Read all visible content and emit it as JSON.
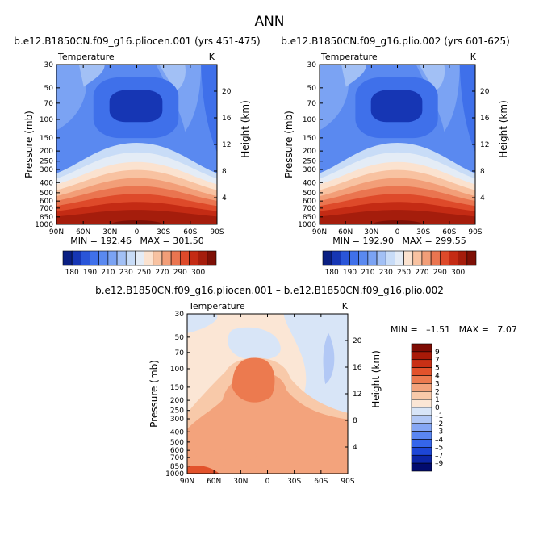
{
  "figure_title": "ANN",
  "chart_data": [
    {
      "type": "heatmap",
      "title": "b.e12.B1850CN.f09_g16.pliocen.001 (yrs 451-475)",
      "field": "Temperature",
      "units": "K",
      "xlabel": "",
      "ylabel": "Pressure (mb)",
      "y2label": "Height (km)",
      "x_ticks": [
        "90N",
        "60N",
        "30N",
        "0",
        "30S",
        "60S",
        "90S"
      ],
      "y_ticks": [
        "30",
        "50",
        "70",
        "100",
        "150",
        "200",
        "250",
        "300",
        "400",
        "500",
        "600",
        "700",
        "850",
        "1000"
      ],
      "y2_ticks": [
        "4",
        "8",
        "12",
        "16",
        "20"
      ],
      "stats": "MIN = 192.46   MAX = 301.50",
      "colorbar_labels": [
        "180",
        "190",
        "210",
        "230",
        "250",
        "270",
        "290",
        "300"
      ],
      "levels": [
        180,
        190,
        200,
        210,
        220,
        230,
        240,
        250,
        260,
        270,
        280,
        290,
        300
      ]
    },
    {
      "type": "heatmap",
      "title": "b.e12.B1850CN.f09_g16.plio.002 (yrs 601-625)",
      "field": "Temperature",
      "units": "K",
      "xlabel": "",
      "ylabel": "Pressure (mb)",
      "y2label": "Height (km)",
      "x_ticks": [
        "90N",
        "60N",
        "30N",
        "0",
        "30S",
        "60S",
        "90S"
      ],
      "y_ticks": [
        "30",
        "50",
        "70",
        "100",
        "150",
        "200",
        "250",
        "300",
        "400",
        "500",
        "600",
        "700",
        "850",
        "1000"
      ],
      "y2_ticks": [
        "4",
        "8",
        "12",
        "16",
        "20"
      ],
      "stats": "MIN = 192.90   MAX = 299.55",
      "colorbar_labels": [
        "180",
        "190",
        "210",
        "230",
        "250",
        "270",
        "290",
        "300"
      ],
      "levels": [
        180,
        190,
        200,
        210,
        220,
        230,
        240,
        250,
        260,
        270,
        280,
        290,
        300
      ]
    },
    {
      "type": "heatmap",
      "title": "b.e12.B1850CN.f09_g16.pliocen.001 – b.e12.B1850CN.f09_g16.plio.002",
      "field": "Temperature",
      "units": "K",
      "xlabel": "",
      "ylabel": "Pressure (mb)",
      "y2label": "Height (km)",
      "x_ticks": [
        "90N",
        "60N",
        "30N",
        "0",
        "30S",
        "60S",
        "90S"
      ],
      "y_ticks": [
        "30",
        "50",
        "70",
        "100",
        "150",
        "200",
        "250",
        "300",
        "400",
        "500",
        "600",
        "700",
        "850",
        "1000"
      ],
      "y2_ticks": [
        "4",
        "8",
        "12",
        "16",
        "20"
      ],
      "stats": "MIN =   –1.51   MAX =   7.07",
      "colorbar_labels": [
        "9",
        "7",
        "5",
        "4",
        "3",
        "2",
        "1",
        "0",
        "–1",
        "–2",
        "–3",
        "–4",
        "–5",
        "–7",
        "–9"
      ],
      "levels": [
        -9,
        -7,
        -5,
        -4,
        -3,
        -2,
        -1,
        0,
        1,
        2,
        3,
        4,
        5,
        7,
        9
      ]
    }
  ],
  "colors": {
    "temp_palette": [
      "#0a1f82",
      "#1636b4",
      "#2a55d8",
      "#3f70ea",
      "#5a89f0",
      "#7ba3f3",
      "#a2c0f5",
      "#c8dcf7",
      "#e4ecf6",
      "#fbe2cf",
      "#f8c2a1",
      "#f29e78",
      "#ea7550",
      "#de4a2a",
      "#c42b14",
      "#a51d0c",
      "#7e1006"
    ],
    "diff_palette": [
      "#020b6e",
      "#0c25a6",
      "#1d46d6",
      "#3565ea",
      "#5a86f1",
      "#86a7f4",
      "#b2c8f5",
      "#d8e5f7",
      "#fbe6d5",
      "#f8c9a9",
      "#f3a37c",
      "#ec7a4f",
      "#e2522b",
      "#c93015",
      "#a91a08",
      "#7e0c04"
    ]
  }
}
